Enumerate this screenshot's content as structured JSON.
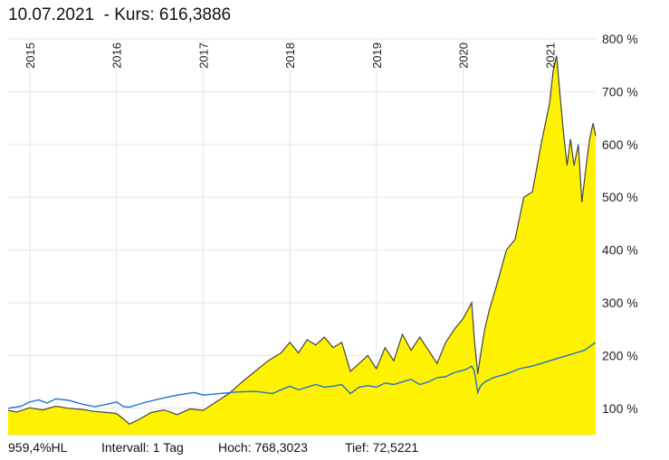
{
  "header": {
    "title": "10.07.2021  - Kurs: 616,3886"
  },
  "footer": {
    "performance": "959,4%HL",
    "interval": "Intervall: 1 Tag",
    "high": "Hoch: 768,3023",
    "low": "Tief: 72,5221"
  },
  "colors": {
    "area_fill": "#FFF200",
    "price_line": "#444444",
    "benchmark_line": "#1F73C8",
    "grid": "#E6E6E6"
  },
  "chart_data": {
    "type": "area",
    "title": "",
    "xlabel": "",
    "ylabel": "",
    "ylim": [
      50,
      800
    ],
    "y_tick_labels": [
      "100 %",
      "200 %",
      "300 %",
      "400 %",
      "500 %",
      "600 %",
      "700 %",
      "800 %"
    ],
    "y_tick_values": [
      100,
      200,
      300,
      400,
      500,
      600,
      700,
      800
    ],
    "x_tick_labels": [
      "2015",
      "2016",
      "2017",
      "2018",
      "2019",
      "2020",
      "2021"
    ],
    "x_tick_values": [
      2015.0,
      2016.0,
      2017.0,
      2018.0,
      2019.0,
      2020.0,
      2021.0
    ],
    "xlim": [
      2014.75,
      2021.53
    ],
    "grid": true,
    "series": [
      {
        "x": [
          2014.75,
          2014.85,
          2015.0,
          2015.15,
          2015.3,
          2015.45,
          2015.6,
          2015.75,
          2015.9,
          2016.0,
          2016.08,
          2016.15,
          2016.25,
          2016.4,
          2016.55,
          2016.7,
          2016.85,
          2017.0,
          2017.15,
          2017.3,
          2017.45,
          2017.6,
          2017.75,
          2017.9,
          2018.0,
          2018.1,
          2018.2,
          2018.3,
          2018.4,
          2018.5,
          2018.6,
          2018.7,
          2018.8,
          2018.9,
          2019.0,
          2019.1,
          2019.2,
          2019.3,
          2019.4,
          2019.5,
          2019.6,
          2019.7,
          2019.8,
          2019.9,
          2020.0,
          2020.05,
          2020.1,
          2020.13,
          2020.17,
          2020.2,
          2020.25,
          2020.3,
          2020.4,
          2020.5,
          2020.6,
          2020.7,
          2020.8,
          2020.9,
          2020.95,
          2021.0,
          2021.04,
          2021.08,
          2021.12,
          2021.16,
          2021.2,
          2021.24,
          2021.28,
          2021.33,
          2021.37,
          2021.42,
          2021.46,
          2021.5,
          2021.53
        ],
        "values": [
          96,
          93,
          101,
          97,
          104,
          100,
          98,
          94,
          92,
          90,
          80,
          70,
          78,
          92,
          97,
          88,
          99,
          96,
          112,
          128,
          150,
          170,
          190,
          205,
          225,
          205,
          230,
          220,
          235,
          215,
          225,
          170,
          185,
          200,
          175,
          215,
          190,
          240,
          210,
          235,
          210,
          185,
          225,
          250,
          270,
          285,
          300,
          230,
          165,
          200,
          250,
          285,
          340,
          400,
          420,
          500,
          510,
          600,
          640,
          680,
          740,
          768,
          690,
          620,
          560,
          610,
          560,
          600,
          490,
          560,
          610,
          640,
          616
        ]
      },
      {
        "x": [
          2014.75,
          2014.9,
          2015.0,
          2015.1,
          2015.2,
          2015.3,
          2015.45,
          2015.6,
          2015.75,
          2015.9,
          2016.0,
          2016.08,
          2016.15,
          2016.3,
          2016.5,
          2016.7,
          2016.9,
          2017.0,
          2017.2,
          2017.4,
          2017.6,
          2017.8,
          2018.0,
          2018.1,
          2018.2,
          2018.3,
          2018.4,
          2018.5,
          2018.6,
          2018.7,
          2018.8,
          2018.9,
          2019.0,
          2019.1,
          2019.2,
          2019.3,
          2019.4,
          2019.5,
          2019.6,
          2019.7,
          2019.8,
          2019.9,
          2020.0,
          2020.05,
          2020.1,
          2020.13,
          2020.17,
          2020.2,
          2020.25,
          2020.35,
          2020.5,
          2020.65,
          2020.8,
          2020.9,
          2021.0,
          2021.1,
          2021.2,
          2021.3,
          2021.4,
          2021.53
        ],
        "values": [
          100,
          104,
          112,
          116,
          110,
          118,
          115,
          108,
          103,
          108,
          112,
          103,
          102,
          110,
          118,
          125,
          130,
          125,
          128,
          131,
          132,
          128,
          142,
          135,
          140,
          145,
          140,
          142,
          145,
          128,
          140,
          143,
          140,
          148,
          145,
          150,
          155,
          145,
          150,
          158,
          160,
          168,
          172,
          175,
          180,
          170,
          130,
          142,
          150,
          158,
          165,
          175,
          180,
          185,
          190,
          195,
          200,
          205,
          210,
          225
        ]
      }
    ]
  }
}
